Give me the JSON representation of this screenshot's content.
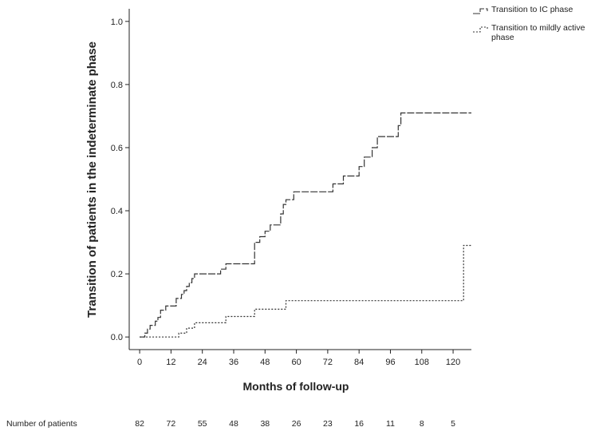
{
  "chart_data": {
    "type": "line",
    "title": "",
    "xlabel": "Months of follow-up",
    "ylabel": "Transition of patients in the indeterminate phase",
    "xlim": [
      -4,
      127
    ],
    "ylim": [
      -0.04,
      1.04
    ],
    "x_ticks": [
      0,
      12,
      24,
      36,
      48,
      60,
      72,
      84,
      96,
      108,
      120
    ],
    "y_ticks": [
      0.0,
      0.2,
      0.4,
      0.6,
      0.8,
      1.0
    ],
    "y_tick_labels": [
      "0.0",
      "0.2",
      "0.4",
      "0.6",
      "0.8",
      "1.0"
    ],
    "grid": false,
    "legend_position": "top-right",
    "series": [
      {
        "name": "Transition to IC phase",
        "style": "dashed",
        "points": [
          [
            0,
            0.0
          ],
          [
            2,
            0.012
          ],
          [
            3,
            0.025
          ],
          [
            4,
            0.037
          ],
          [
            6,
            0.05
          ],
          [
            7,
            0.062
          ],
          [
            8,
            0.085
          ],
          [
            10,
            0.098
          ],
          [
            14,
            0.122
          ],
          [
            16,
            0.135
          ],
          [
            17,
            0.147
          ],
          [
            18,
            0.16
          ],
          [
            19,
            0.172
          ],
          [
            20,
            0.185
          ],
          [
            21,
            0.2
          ],
          [
            31,
            0.215
          ],
          [
            33,
            0.232
          ],
          [
            44,
            0.3
          ],
          [
            46,
            0.318
          ],
          [
            48,
            0.335
          ],
          [
            50,
            0.355
          ],
          [
            54,
            0.39
          ],
          [
            55,
            0.42
          ],
          [
            56,
            0.435
          ],
          [
            59,
            0.46
          ],
          [
            74,
            0.485
          ],
          [
            78,
            0.51
          ],
          [
            84,
            0.54
          ],
          [
            86,
            0.57
          ],
          [
            89,
            0.6
          ],
          [
            91,
            0.635
          ],
          [
            99,
            0.67
          ],
          [
            100,
            0.71
          ],
          [
            127,
            0.71
          ]
        ]
      },
      {
        "name": "Transition to mildly active phase",
        "style": "dotted",
        "points": [
          [
            0,
            0.0
          ],
          [
            15,
            0.012
          ],
          [
            18,
            0.028
          ],
          [
            21,
            0.045
          ],
          [
            33,
            0.065
          ],
          [
            44,
            0.088
          ],
          [
            56,
            0.115
          ],
          [
            123,
            0.115
          ],
          [
            124,
            0.29
          ],
          [
            127,
            0.29
          ]
        ]
      }
    ],
    "risk_table": {
      "label": "Number of patients",
      "values": [
        "82",
        "72",
        "55",
        "48",
        "38",
        "26",
        "23",
        "16",
        "11",
        "8",
        "5"
      ]
    }
  }
}
